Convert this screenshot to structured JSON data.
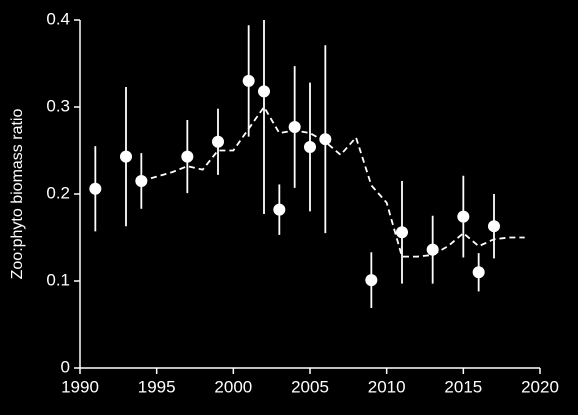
{
  "chart_data": {
    "type": "scatter",
    "y_label": "Zoo:phyto biomass ratio",
    "xlim": [
      1990,
      2020
    ],
    "xticks": [
      1990,
      1995,
      2000,
      2005,
      2010,
      2015,
      2020
    ],
    "ylim": [
      0,
      0.4
    ],
    "yticks": [
      0,
      0.1,
      0.2,
      0.3,
      0.4
    ],
    "color": "#ffffff",
    "background": "#000000",
    "points": {
      "x": [
        1991,
        1993,
        1994,
        1997,
        1999,
        2001,
        2002,
        2003,
        2004,
        2005,
        2006,
        2009,
        2011,
        2013,
        2015,
        2016,
        2017
      ],
      "values": [
        0.206,
        0.243,
        0.215,
        0.243,
        0.26,
        0.33,
        0.318,
        0.182,
        0.277,
        0.254,
        0.263,
        0.101,
        0.156,
        0.136,
        0.174,
        0.11,
        0.163
      ],
      "errors": [
        0.049,
        0.08,
        0.032,
        0.042,
        0.038,
        0.064,
        0.141,
        0.029,
        0.07,
        0.074,
        0.108,
        0.032,
        0.059,
        0.039,
        0.047,
        0.022,
        0.037
      ]
    },
    "trend": {
      "x": [
        1994,
        1995,
        1996,
        1997,
        1998,
        1999,
        2000,
        2001,
        2002,
        2003,
        2004,
        2005,
        2006,
        2007,
        2008,
        2009,
        2010,
        2011,
        2012,
        2013,
        2014,
        2015,
        2016,
        2017,
        2018,
        2019
      ],
      "values": [
        0.215,
        0.22,
        0.225,
        0.232,
        0.228,
        0.25,
        0.25,
        0.275,
        0.3,
        0.27,
        0.273,
        0.27,
        0.26,
        0.245,
        0.265,
        0.21,
        0.19,
        0.128,
        0.128,
        0.13,
        0.14,
        0.155,
        0.14,
        0.148,
        0.15,
        0.15
      ]
    }
  }
}
